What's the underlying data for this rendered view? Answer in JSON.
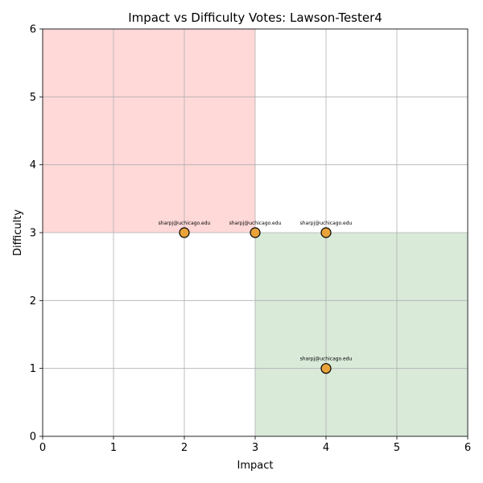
{
  "chart_data": {
    "type": "scatter",
    "title": "Impact vs Difficulty Votes: Lawson-Tester4",
    "xlabel": "Impact",
    "ylabel": "Difficulty",
    "xlim": [
      0,
      6
    ],
    "ylim": [
      0,
      6
    ],
    "xticks": [
      "0",
      "1",
      "2",
      "3",
      "4",
      "5",
      "6"
    ],
    "yticks": [
      "0",
      "1",
      "2",
      "3",
      "4",
      "5",
      "6"
    ],
    "grid": true,
    "regions": [
      {
        "name": "high-difficulty-low-impact",
        "x": [
          0,
          3
        ],
        "y": [
          3,
          6
        ],
        "color": "#ffd8d8"
      },
      {
        "name": "low-difficulty-high-impact",
        "x": [
          3,
          6
        ],
        "y": [
          0,
          3
        ],
        "color": "#d9ead9"
      }
    ],
    "marker_color": "#e8a33a",
    "marker_edge_color": "#000000",
    "points": [
      {
        "x": 2,
        "y": 3,
        "label": "sharpj@uchicago.edu"
      },
      {
        "x": 3,
        "y": 3,
        "label": "sharpj@uchicago.edu"
      },
      {
        "x": 4,
        "y": 3,
        "label": "sharpj@uchicago.edu"
      },
      {
        "x": 4,
        "y": 1,
        "label": "sharpj@uchicago.edu"
      }
    ]
  }
}
